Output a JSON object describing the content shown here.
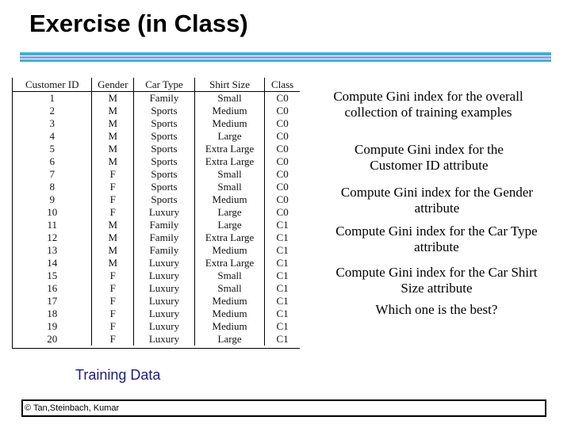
{
  "title": "Exercise (in Class)",
  "table": {
    "headers": [
      "Customer ID",
      "Gender",
      "Car Type",
      "Shirt Size",
      "Class"
    ],
    "rows": [
      [
        "1",
        "M",
        "Family",
        "Small",
        "C0"
      ],
      [
        "2",
        "M",
        "Sports",
        "Medium",
        "C0"
      ],
      [
        "3",
        "M",
        "Sports",
        "Medium",
        "C0"
      ],
      [
        "4",
        "M",
        "Sports",
        "Large",
        "C0"
      ],
      [
        "5",
        "M",
        "Sports",
        "Extra Large",
        "C0"
      ],
      [
        "6",
        "M",
        "Sports",
        "Extra Large",
        "C0"
      ],
      [
        "7",
        "F",
        "Sports",
        "Small",
        "C0"
      ],
      [
        "8",
        "F",
        "Sports",
        "Small",
        "C0"
      ],
      [
        "9",
        "F",
        "Sports",
        "Medium",
        "C0"
      ],
      [
        "10",
        "F",
        "Luxury",
        "Large",
        "C0"
      ],
      [
        "11",
        "M",
        "Family",
        "Large",
        "C1"
      ],
      [
        "12",
        "M",
        "Family",
        "Extra Large",
        "C1"
      ],
      [
        "13",
        "M",
        "Family",
        "Medium",
        "C1"
      ],
      [
        "14",
        "M",
        "Luxury",
        "Extra Large",
        "C1"
      ],
      [
        "15",
        "F",
        "Luxury",
        "Small",
        "C1"
      ],
      [
        "16",
        "F",
        "Luxury",
        "Small",
        "C1"
      ],
      [
        "17",
        "F",
        "Luxury",
        "Medium",
        "C1"
      ],
      [
        "18",
        "F",
        "Luxury",
        "Medium",
        "C1"
      ],
      [
        "19",
        "F",
        "Luxury",
        "Medium",
        "C1"
      ],
      [
        "20",
        "F",
        "Luxury",
        "Large",
        "C1"
      ]
    ]
  },
  "questions": {
    "q1": "Compute Gini index for the overall collection of training examples",
    "q2": "Compute Gini index for the Customer ID attribute",
    "q3": "Compute Gini index for the Gender attribute",
    "q4": "Compute Gini index for the Car Type attribute",
    "q5": "Compute Gini index for the Car Shirt Size attribute",
    "q6": "Which one is the best?"
  },
  "caption": "Training Data",
  "footer": "© Tan,Steinbach, Kumar",
  "colors": {
    "accent_blue": "#39b3d9",
    "accent_purple": "#9a9ad6",
    "caption": "#1a1a8a"
  }
}
